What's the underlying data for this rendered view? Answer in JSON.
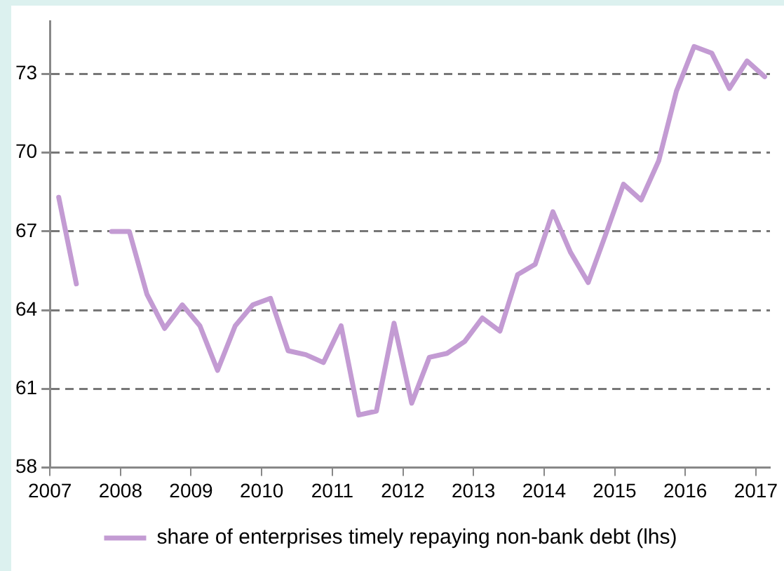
{
  "chart_data": {
    "type": "line",
    "x": [
      2007.125,
      2007.375,
      2007.625,
      2007.875,
      2008.125,
      2008.375,
      2008.625,
      2008.875,
      2009.125,
      2009.375,
      2009.625,
      2009.875,
      2010.125,
      2010.375,
      2010.625,
      2010.875,
      2011.125,
      2011.375,
      2011.625,
      2011.875,
      2012.125,
      2012.375,
      2012.625,
      2012.875,
      2013.125,
      2013.375,
      2013.625,
      2013.875,
      2014.125,
      2014.375,
      2014.625,
      2014.875,
      2015.125,
      2015.375,
      2015.625,
      2015.875,
      2016.125,
      2016.375,
      2016.625,
      2016.875,
      2017.125
    ],
    "series": [
      {
        "name": "share of enterprises timely repaying non-bank debt (lhs)",
        "color": "#c39bd3",
        "values": [
          68.3,
          65.0,
          null,
          67.0,
          67.0,
          64.6,
          63.3,
          64.2,
          63.4,
          61.7,
          63.4,
          64.2,
          64.45,
          62.45,
          62.3,
          62.0,
          63.4,
          60.0,
          60.15,
          63.5,
          60.45,
          62.2,
          62.35,
          62.8,
          63.7,
          63.2,
          65.35,
          65.75,
          67.75,
          66.2,
          65.05,
          66.9,
          68.8,
          68.2,
          69.7,
          72.35,
          74.05,
          73.8,
          72.45,
          73.5,
          72.9
        ]
      }
    ],
    "xlim": [
      2007,
      2017.2
    ],
    "xticks": [
      2007,
      2008,
      2009,
      2010,
      2011,
      2012,
      2013,
      2014,
      2015,
      2016,
      2017
    ],
    "ylim": [
      58,
      75
    ],
    "yticks": [
      58,
      61,
      64,
      67,
      70,
      73
    ],
    "grid": "y",
    "legend": "bottom",
    "marker": "none",
    "line_style": "solid"
  }
}
